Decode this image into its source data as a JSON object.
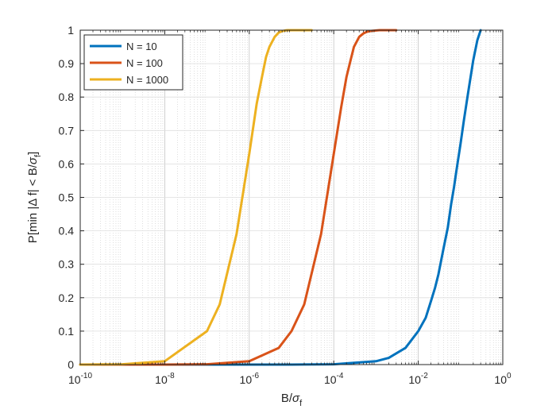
{
  "chart_data": {
    "type": "line",
    "xscale": "log",
    "xlim": [
      1e-10,
      1
    ],
    "ylim": [
      0,
      1
    ],
    "grid": true,
    "minor_grid": true,
    "xlabel": "B/σf",
    "ylabel": "P[min |Δ f| < B/σf]",
    "xticks": [
      {
        "value": 1e-10,
        "mantissa": "10",
        "exp": "-10"
      },
      {
        "value": 1e-08,
        "mantissa": "10",
        "exp": "-8"
      },
      {
        "value": 1e-06,
        "mantissa": "10",
        "exp": "-6"
      },
      {
        "value": 0.0001,
        "mantissa": "10",
        "exp": "-4"
      },
      {
        "value": 0.01,
        "mantissa": "10",
        "exp": "-2"
      },
      {
        "value": 1,
        "mantissa": "10",
        "exp": "0"
      }
    ],
    "yticks": [
      0,
      0.1,
      0.2,
      0.3,
      0.4,
      0.5,
      0.6,
      0.7,
      0.8,
      0.9,
      1
    ],
    "ytick_labels": [
      "0",
      "0.1",
      "0.2",
      "0.3",
      "0.4",
      "0.5",
      "0.6",
      "0.7",
      "0.8",
      "0.9",
      "1"
    ],
    "legend_position": "top-left",
    "series": [
      {
        "name": "N = 10",
        "color": "#0072BD",
        "x": [
          1e-10,
          1e-08,
          1e-06,
          1e-05,
          0.0001,
          0.001,
          0.002,
          0.005,
          0.01,
          0.015,
          0.02,
          0.025,
          0.03,
          0.04,
          0.05,
          0.06,
          0.07,
          0.08,
          0.1,
          0.12,
          0.15,
          0.2,
          0.25,
          0.3
        ],
        "y": [
          0,
          0,
          0,
          0,
          0.001,
          0.01,
          0.02,
          0.05,
          0.1,
          0.14,
          0.19,
          0.23,
          0.27,
          0.35,
          0.41,
          0.48,
          0.53,
          0.58,
          0.66,
          0.73,
          0.81,
          0.91,
          0.97,
          1.0
        ]
      },
      {
        "name": "N = 100",
        "color": "#D95319",
        "x": [
          1e-10,
          1e-08,
          1e-07,
          1e-06,
          5e-06,
          1e-05,
          2e-05,
          5e-05,
          0.0001,
          0.00015,
          0.0002,
          0.00025,
          0.0003,
          0.0004,
          0.0005,
          0.0006,
          0.0007,
          0.0008,
          0.001,
          0.0012,
          0.0015,
          0.002,
          0.0025,
          0.003
        ],
        "y": [
          0,
          0,
          0.001,
          0.01,
          0.05,
          0.1,
          0.18,
          0.39,
          0.63,
          0.77,
          0.86,
          0.91,
          0.95,
          0.98,
          0.99,
          0.995,
          0.997,
          0.998,
          0.999,
          1.0,
          1.0,
          1.0,
          1.0,
          1.0
        ]
      },
      {
        "name": "N = 1000",
        "color": "#EDB120",
        "x": [
          1e-10,
          1e-09,
          1e-08,
          1e-07,
          2e-07,
          5e-07,
          1e-06,
          1.5e-06,
          2e-06,
          2.5e-06,
          3e-06,
          4e-06,
          5e-06,
          6e-06,
          7e-06,
          8e-06,
          1e-05,
          1.2e-05,
          1.5e-05,
          2e-05,
          2.5e-05,
          3e-05
        ],
        "y": [
          0,
          0.001,
          0.01,
          0.1,
          0.18,
          0.39,
          0.63,
          0.78,
          0.86,
          0.92,
          0.95,
          0.98,
          0.993,
          0.997,
          0.999,
          1.0,
          1.0,
          1.0,
          1.0,
          1.0,
          1.0,
          1.0
        ]
      }
    ]
  }
}
